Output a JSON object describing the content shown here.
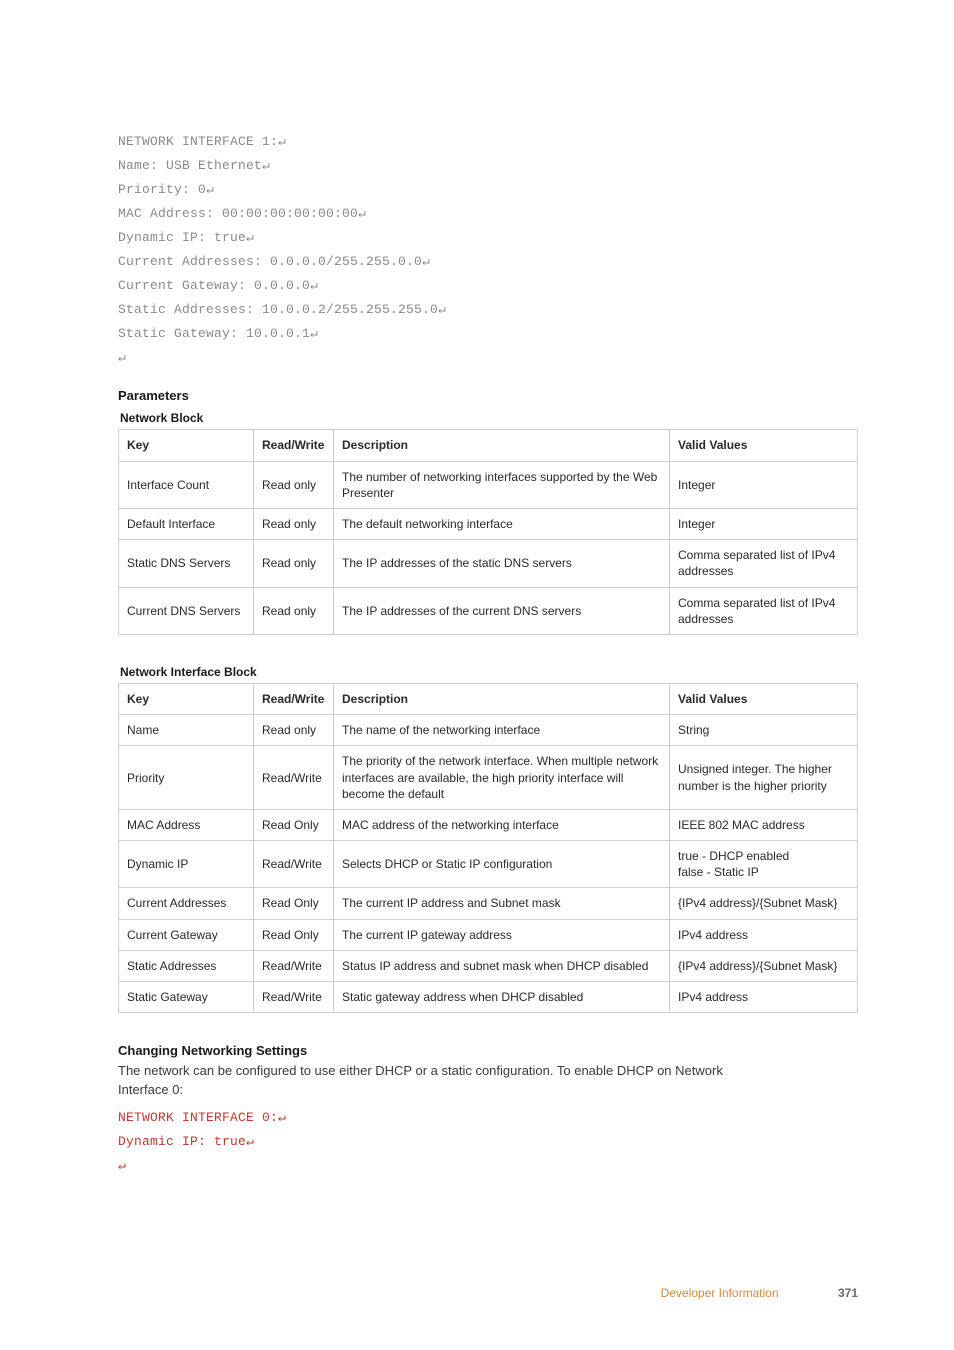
{
  "codeBlock1": [
    "NETWORK INTERFACE 1:↵",
    "Name: USB Ethernet↵",
    "Priority: 0↵",
    "MAC Address: 00:00:00:00:00:00↵",
    "Dynamic IP: true↵",
    "Current Addresses: 0.0.0.0/255.255.0.0↵",
    "Current Gateway: 0.0.0.0↵",
    "Static Addresses: 10.0.0.2/255.255.255.0↵",
    "Static Gateway: 10.0.0.1↵",
    "↵"
  ],
  "parametersHeading": "Parameters",
  "table1": {
    "title": "Network Block",
    "headers": [
      "Key",
      "Read/Write",
      "Description",
      "Valid Values"
    ],
    "rows": [
      [
        "Interface Count",
        "Read only",
        "The number of networking interfaces supported by the Web Presenter",
        "Integer"
      ],
      [
        "Default Interface",
        "Read only",
        "The default networking interface",
        "Integer"
      ],
      [
        "Static DNS Servers",
        "Read only",
        "The IP addresses of the static DNS servers",
        "Comma separated list of IPv4 addresses"
      ],
      [
        "Current DNS Servers",
        "Read only",
        "The IP addresses of the current DNS servers",
        "Comma separated list of IPv4 addresses"
      ]
    ]
  },
  "table2": {
    "title": "Network Interface Block",
    "headers": [
      "Key",
      "Read/Write",
      "Description",
      "Valid Values"
    ],
    "rows": [
      [
        "Name",
        "Read only",
        "The name of the networking interface",
        "String"
      ],
      [
        "Priority",
        "Read/Write",
        "The priority of the network interface. When multiple network interfaces are available, the high priority interface will become the default",
        "Unsigned integer. The higher number is the higher priority"
      ],
      [
        "MAC Address",
        "Read Only",
        "MAC address of the networking interface",
        "IEEE 802 MAC address"
      ],
      [
        "Dynamic IP",
        "Read/Write",
        "Selects DHCP or Static IP configuration",
        "true - DHCP enabled\nfalse - Static IP"
      ],
      [
        "Current Addresses",
        "Read Only",
        "The current IP address and Subnet mask",
        "{IPv4 address}/{Subnet Mask}"
      ],
      [
        "Current Gateway",
        "Read Only",
        "The current IP gateway address",
        "IPv4 address"
      ],
      [
        "Static Addresses",
        "Read/Write",
        "Status IP address and subnet mask when DHCP disabled",
        "{IPv4 address}/{Subnet Mask}"
      ],
      [
        "Static Gateway",
        "Read/Write",
        "Static gateway address when DHCP disabled",
        "IPv4 address"
      ]
    ]
  },
  "changeHeading": "Changing Networking Settings",
  "changeBody": "The network can be configured to use either DHCP or a static configuration. To enable DHCP on Network Interface 0:",
  "codeBlock2": [
    "NETWORK INTERFACE 0:↵",
    "Dynamic IP: true↵",
    "↵"
  ],
  "footer": {
    "section": "Developer Information",
    "page": "371"
  }
}
